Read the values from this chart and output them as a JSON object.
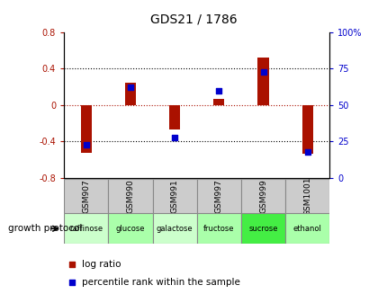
{
  "title": "GDS21 / 1786",
  "samples": [
    "GSM907",
    "GSM990",
    "GSM991",
    "GSM997",
    "GSM999",
    "GSM1001"
  ],
  "protocols": [
    "raffinose",
    "glucose",
    "galactose",
    "fructose",
    "sucrose",
    "ethanol"
  ],
  "log_ratios": [
    -0.52,
    0.25,
    -0.27,
    0.07,
    0.52,
    -0.53
  ],
  "percentile_ranks": [
    23,
    62,
    28,
    60,
    73,
    18
  ],
  "left_ylim": [
    -0.8,
    0.8
  ],
  "right_ylim": [
    0,
    100
  ],
  "left_yticks": [
    -0.8,
    -0.4,
    0.0,
    0.4,
    0.8
  ],
  "right_yticks": [
    0,
    25,
    50,
    75,
    100
  ],
  "left_ytick_labels": [
    "-0.8",
    "-0.4",
    "0",
    "0.4",
    "0.8"
  ],
  "right_ytick_labels": [
    "0",
    "25",
    "50",
    "75",
    "100%"
  ],
  "bar_color": "#aa1100",
  "dot_color": "#0000cc",
  "bg_color": "#ffffff",
  "plot_bg": "#ffffff",
  "protocol_colors": [
    "#ccffcc",
    "#aaffaa",
    "#ccffcc",
    "#aaffaa",
    "#44ee44",
    "#aaffaa"
  ],
  "sample_bg": "#cccccc",
  "growth_label": "growth protocol",
  "legend_log": "log ratio",
  "legend_pct": "percentile rank within the sample"
}
